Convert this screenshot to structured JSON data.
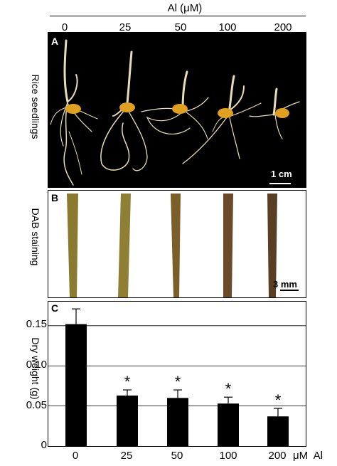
{
  "header": {
    "title": "Al (μM)",
    "concentrations": [
      "0",
      "25",
      "50",
      "100",
      "200"
    ]
  },
  "panels": {
    "a": {
      "label": "A",
      "side_label": "Rice seedlings",
      "scale": "1 cm"
    },
    "b": {
      "label": "B",
      "side_label": "DAB staining",
      "scale": "3 mm"
    },
    "c": {
      "label": "C",
      "side_label": "Dry weight (g)"
    }
  },
  "chart_data": {
    "type": "bar",
    "categories": [
      "0",
      "25",
      "50",
      "100",
      "200"
    ],
    "values": [
      0.152,
      0.063,
      0.06,
      0.053,
      0.037
    ],
    "errors": [
      0.019,
      0.007,
      0.01,
      0.008,
      0.01
    ],
    "significance": [
      "",
      "*",
      "*",
      "*",
      "*"
    ],
    "xlabel": "μM  Al",
    "ylabel": "Dry weight (g)",
    "ylim": [
      0,
      0.18
    ],
    "yticks": [
      "0",
      "0.05",
      "0.10",
      "0.15"
    ],
    "grid": true
  },
  "colors": {
    "bar": "#000000",
    "background_a": "#000000",
    "seedling": "#e8dcb8",
    "seed": "#e0a020",
    "stem_light": "#8a7a30",
    "stem_dark": "#5a3f25"
  }
}
